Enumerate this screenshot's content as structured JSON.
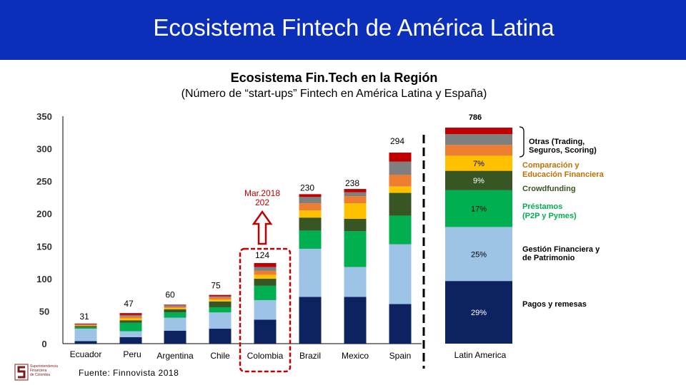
{
  "header": {
    "title": "Ecosistema Fintech de América Latina"
  },
  "source": "Fuente: Finnovista 2018",
  "logo": {
    "lines": [
      "Superintendencia",
      "Financiera",
      "de Colombia"
    ]
  },
  "colors": {
    "header_bg": "#0b2fb8",
    "highlight_box": "#c00000",
    "arrow": "#c00000"
  },
  "chart_data": {
    "type": "bar",
    "stacked": true,
    "title": "Ecosistema Fin.Tech en la Región",
    "subtitle": "(Número de “start-ups” Fintech en América Latina y España)",
    "ylim": [
      0,
      350
    ],
    "yticks": [
      0,
      50,
      100,
      150,
      200,
      250,
      300,
      350
    ],
    "grid": false,
    "categories": [
      "Ecuador",
      "Peru",
      "Argentina",
      "Chile",
      "Colombia",
      "Brazil",
      "Mexico",
      "Spain"
    ],
    "totals": [
      31,
      47,
      60,
      75,
      124,
      230,
      238,
      294
    ],
    "segment_colors": [
      "#0d2260",
      "#9dc3e6",
      "#00b050",
      "#375623",
      "#ffc000",
      "#ed7d31",
      "#7f7f7f",
      "#c00000"
    ],
    "segments": [
      [
        4,
        19,
        2,
        2,
        1,
        1,
        1,
        1
      ],
      [
        10,
        9,
        13,
        4,
        3,
        3,
        2,
        3
      ],
      [
        20,
        20,
        8,
        5,
        2,
        2,
        2,
        1
      ],
      [
        23,
        25,
        8,
        9,
        3,
        3,
        2,
        2
      ],
      [
        37,
        30,
        22,
        11,
        6,
        6,
        6,
        6
      ],
      [
        72,
        74,
        28,
        20,
        11,
        11,
        10,
        4
      ],
      [
        72,
        46,
        55,
        19,
        24,
        11,
        6,
        5
      ],
      [
        61,
        92,
        44,
        35,
        10,
        18,
        20,
        14
      ]
    ],
    "annotation_mar2018": {
      "label": "Mar.2018",
      "value": "202"
    },
    "highlighted_category": "Colombia",
    "latam": {
      "category": "Latin America",
      "total": "786",
      "segments": [
        {
          "pct": "29%",
          "label": "Pagos y remesas",
          "color": "#0d2260",
          "share": 29
        },
        {
          "pct": "25%",
          "label": "Gestión Financiera y de Patrimonio",
          "color": "#9dc3e6",
          "share": 25
        },
        {
          "pct": "17%",
          "label": "Préstamos (P2P y Pymes)",
          "color": "#00b050",
          "share": 17
        },
        {
          "pct": "9%",
          "label": "Crowdfunding",
          "color": "#375623",
          "share": 9
        },
        {
          "pct": "7%",
          "label": "Comparación y Educación Financiera",
          "color": "#ffc000",
          "share": 7
        },
        {
          "pct": "",
          "label": "",
          "color": "#ed7d31",
          "share": 5
        },
        {
          "pct": "",
          "label": "Otras (Trading, Seguros, Scoring)",
          "color": "#7f7f7f",
          "share": 5
        },
        {
          "pct": "",
          "label": "",
          "color": "#c00000",
          "share": 3
        }
      ]
    }
  }
}
